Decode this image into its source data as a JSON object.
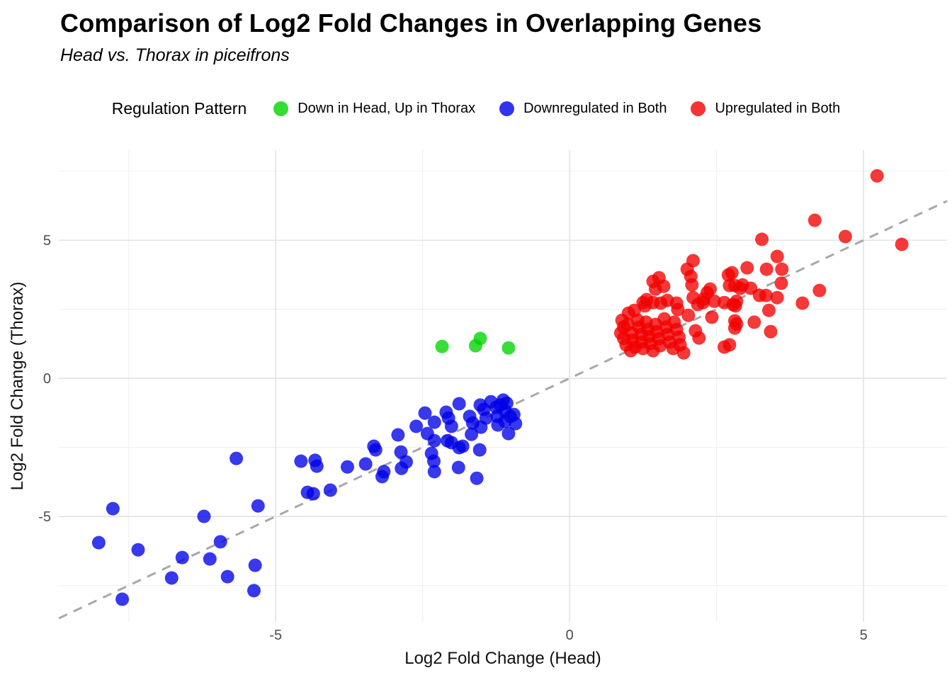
{
  "header": {
    "title": "Comparison of Log2 Fold Changes in Overlapping Genes",
    "subtitle": "Head vs. Thorax in piceifrons"
  },
  "legend": {
    "title": "Regulation Pattern",
    "position": "top",
    "items": [
      {
        "label": "Down in Head, Up in Thorax",
        "color": "#00D400"
      },
      {
        "label": "Downregulated in Both",
        "color": "#0000E8"
      },
      {
        "label": "Upregulated in Both",
        "color": "#F20000"
      }
    ]
  },
  "chart_data": {
    "type": "scatter",
    "title": "Comparison of Log2 Fold Changes in Overlapping Genes",
    "subtitle": "Head vs. Thorax in piceifrons",
    "xlabel": "Log2 Fold Change (Head)",
    "ylabel": "Log2 Fold Change (Thorax)",
    "xlim": [
      -8.69,
      6.42
    ],
    "ylim": [
      -8.82,
      8.26
    ],
    "x_tick_values": [
      -5,
      0,
      5
    ],
    "x_tick_labels": [
      "-5",
      "0",
      "5"
    ],
    "y_tick_values": [
      -5,
      0,
      5
    ],
    "y_tick_labels": [
      "-5",
      "0",
      "5"
    ],
    "x_minor_ticks": [
      -7.5,
      -2.5,
      2.5
    ],
    "y_minor_ticks": [
      -7.5,
      -2.5,
      2.5,
      7.5
    ],
    "grid": "on",
    "background": "#ffffff",
    "grid_major_color": "#e3e3e3",
    "grid_minor_color": "#f0f0f0",
    "legend_position": "top",
    "point_opacity": 0.78,
    "identity_line": {
      "equation": "y = x",
      "style": "dashed",
      "color": "#A8A8A8",
      "from": [
        -8.69,
        -8.69
      ],
      "to": [
        6.42,
        6.42
      ]
    },
    "series": [
      {
        "name": "Down in Head, Up in Thorax",
        "color": "#00D400",
        "points": [
          [
            -2.17,
            1.15
          ],
          [
            -1.6,
            1.18
          ],
          [
            -1.52,
            1.44
          ],
          [
            -1.04,
            1.1
          ]
        ]
      },
      {
        "name": "Downregulated in Both",
        "color": "#0000E8",
        "points": [
          [
            -8.01,
            -5.95
          ],
          [
            -7.77,
            -4.72
          ],
          [
            -7.61,
            -8.0
          ],
          [
            -7.34,
            -6.21
          ],
          [
            -6.77,
            -7.23
          ],
          [
            -6.59,
            -6.49
          ],
          [
            -6.22,
            -5.0
          ],
          [
            -6.12,
            -6.54
          ],
          [
            -5.94,
            -5.92
          ],
          [
            -5.82,
            -7.18
          ],
          [
            -5.67,
            -2.9
          ],
          [
            -5.37,
            -7.69
          ],
          [
            -5.35,
            -6.77
          ],
          [
            -5.3,
            -4.62
          ],
          [
            -4.57,
            -3.0
          ],
          [
            -4.46,
            -4.13
          ],
          [
            -4.36,
            -4.18
          ],
          [
            -4.33,
            -2.97
          ],
          [
            -4.3,
            -3.18
          ],
          [
            -4.07,
            -4.05
          ],
          [
            -3.78,
            -3.21
          ],
          [
            -3.47,
            -3.1
          ],
          [
            -3.33,
            -2.46
          ],
          [
            -3.3,
            -2.59
          ],
          [
            -3.16,
            -3.38
          ],
          [
            -3.19,
            -3.56
          ],
          [
            -2.92,
            -2.05
          ],
          [
            -2.87,
            -2.67
          ],
          [
            -2.86,
            -3.26
          ],
          [
            -2.78,
            -3.03
          ],
          [
            -2.61,
            -1.74
          ],
          [
            -2.46,
            -1.26
          ],
          [
            -2.42,
            -2.0
          ],
          [
            -2.35,
            -2.72
          ],
          [
            -2.31,
            -3.0
          ],
          [
            -2.3,
            -1.59
          ],
          [
            -2.3,
            -2.26
          ],
          [
            -2.3,
            -3.38
          ],
          [
            -2.1,
            -1.23
          ],
          [
            -2.08,
            -2.26
          ],
          [
            -2.06,
            -1.44
          ],
          [
            -2.01,
            -1.74
          ],
          [
            -2.01,
            -2.33
          ],
          [
            -1.89,
            -3.23
          ],
          [
            -1.88,
            -0.92
          ],
          [
            -1.88,
            -2.51
          ],
          [
            -1.82,
            -2.46
          ],
          [
            -1.7,
            -1.38
          ],
          [
            -1.67,
            -2.03
          ],
          [
            -1.65,
            -1.62
          ],
          [
            -1.58,
            -3.62
          ],
          [
            -1.53,
            -2.59
          ],
          [
            -1.52,
            -0.97
          ],
          [
            -1.51,
            -1.77
          ],
          [
            -1.46,
            -1.13
          ],
          [
            -1.42,
            -1.44
          ],
          [
            -1.34,
            -0.85
          ],
          [
            -1.25,
            -1.05
          ],
          [
            -1.23,
            -1.38
          ],
          [
            -1.22,
            -1.69
          ],
          [
            -1.18,
            -0.97
          ],
          [
            -1.13,
            -0.79
          ],
          [
            -1.1,
            -1.18
          ],
          [
            -1.1,
            -1.56
          ],
          [
            -1.07,
            -0.9
          ],
          [
            -1.04,
            -2.0
          ],
          [
            -1.01,
            -1.38
          ],
          [
            -0.95,
            -1.31
          ],
          [
            -0.92,
            -1.64
          ]
        ]
      },
      {
        "name": "Upregulated in Both",
        "color": "#F20000",
        "points": [
          [
            0.87,
            1.64
          ],
          [
            0.89,
            2.1
          ],
          [
            0.92,
            1.85
          ],
          [
            0.92,
            1.44
          ],
          [
            0.96,
            1.21
          ],
          [
            0.99,
            1.95
          ],
          [
            1.0,
            2.36
          ],
          [
            1.04,
            1.0
          ],
          [
            1.06,
            1.64
          ],
          [
            1.07,
            1.38
          ],
          [
            1.1,
            2.46
          ],
          [
            1.11,
            1.13
          ],
          [
            1.16,
            2.1
          ],
          [
            1.18,
            1.85
          ],
          [
            1.22,
            1.59
          ],
          [
            1.22,
            1.31
          ],
          [
            1.25,
            1.08
          ],
          [
            1.25,
            2.74
          ],
          [
            1.28,
            2.62
          ],
          [
            1.3,
            2.03
          ],
          [
            1.31,
            2.85
          ],
          [
            1.33,
            1.77
          ],
          [
            1.35,
            1.51
          ],
          [
            1.37,
            1.26
          ],
          [
            1.42,
            1.0
          ],
          [
            1.42,
            2.74
          ],
          [
            1.42,
            3.51
          ],
          [
            1.46,
            1.95
          ],
          [
            1.46,
            3.23
          ],
          [
            1.48,
            1.69
          ],
          [
            1.52,
            1.44
          ],
          [
            1.52,
            3.64
          ],
          [
            1.54,
            1.18
          ],
          [
            1.55,
            2.72
          ],
          [
            1.6,
            3.33
          ],
          [
            1.61,
            2.15
          ],
          [
            1.64,
            1.85
          ],
          [
            1.66,
            2.82
          ],
          [
            1.67,
            1.59
          ],
          [
            1.7,
            1.31
          ],
          [
            1.76,
            1.08
          ],
          [
            1.78,
            2.03
          ],
          [
            1.82,
            1.77
          ],
          [
            1.82,
            2.72
          ],
          [
            1.84,
            2.49
          ],
          [
            1.86,
            1.49
          ],
          [
            1.88,
            1.21
          ],
          [
            1.94,
            0.92
          ],
          [
            2.0,
            3.95
          ],
          [
            2.02,
            2.28
          ],
          [
            2.06,
            3.69
          ],
          [
            2.08,
            3.38
          ],
          [
            2.1,
            4.26
          ],
          [
            2.1,
            2.92
          ],
          [
            2.14,
            1.72
          ],
          [
            2.18,
            2.67
          ],
          [
            2.2,
            1.46
          ],
          [
            2.27,
            2.74
          ],
          [
            2.28,
            2.87
          ],
          [
            2.34,
            3.1
          ],
          [
            2.39,
            3.23
          ],
          [
            2.42,
            2.21
          ],
          [
            2.46,
            2.79
          ],
          [
            2.63,
            2.74
          ],
          [
            2.63,
            1.13
          ],
          [
            2.7,
            3.74
          ],
          [
            2.72,
            3.36
          ],
          [
            2.72,
            1.21
          ],
          [
            2.76,
            3.82
          ],
          [
            2.78,
            2.67
          ],
          [
            2.81,
            3.36
          ],
          [
            2.81,
            1.82
          ],
          [
            2.81,
            2.08
          ],
          [
            2.82,
            2.62
          ],
          [
            2.84,
            1.97
          ],
          [
            2.84,
            2.79
          ],
          [
            2.9,
            3.26
          ],
          [
            2.94,
            3.38
          ],
          [
            3.02,
            4.0
          ],
          [
            3.08,
            3.26
          ],
          [
            3.14,
            2.03
          ],
          [
            3.23,
            3.0
          ],
          [
            3.27,
            5.03
          ],
          [
            3.34,
            3.0
          ],
          [
            3.35,
            3.95
          ],
          [
            3.39,
            2.46
          ],
          [
            3.42,
            1.69
          ],
          [
            3.53,
            4.41
          ],
          [
            3.53,
            2.92
          ],
          [
            3.6,
            3.44
          ],
          [
            3.61,
            3.95
          ],
          [
            3.96,
            2.72
          ],
          [
            4.17,
            5.72
          ],
          [
            4.25,
            3.18
          ],
          [
            4.69,
            5.13
          ],
          [
            5.23,
            7.33
          ],
          [
            5.65,
            4.85
          ]
        ]
      }
    ]
  }
}
